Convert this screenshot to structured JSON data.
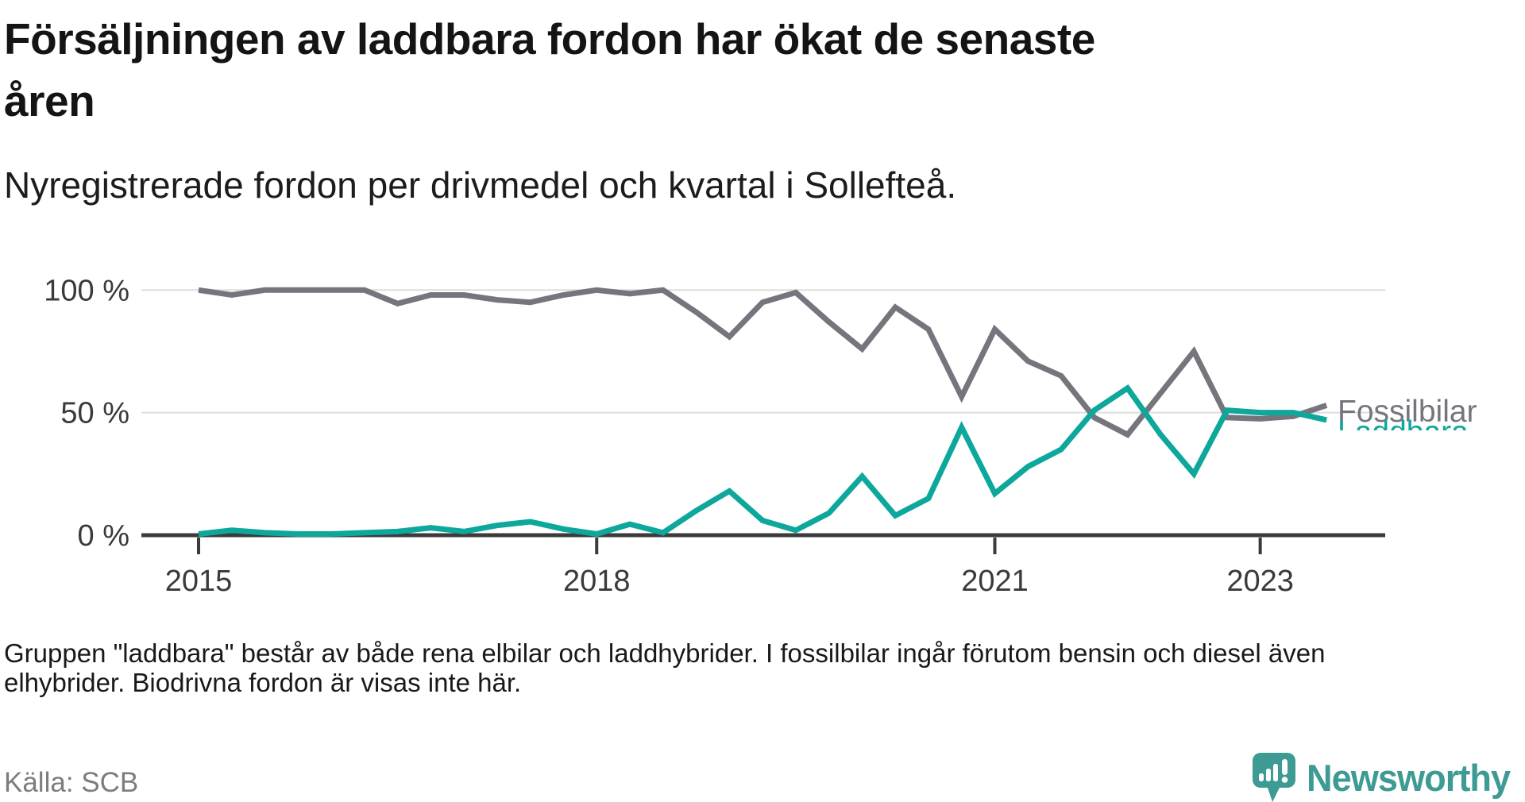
{
  "title": "Försäljningen av laddbara fordon har ökat de senaste\nåren",
  "subtitle": "Nyregistrerade fordon per drivmedel och kvartal i Sollefteå.",
  "footnote": "Gruppen \"laddbara\" består av både rena elbilar och laddhybrider. I fossilbilar ingår förutom bensin och diesel även\nelhybrider. Biodrivna fordon är visas inte här.",
  "source": "Källa: SCB",
  "branding": {
    "logo_text": "Newsworthy",
    "logo_icon": "newsworthy-speech-bubble-bars-icon",
    "logo_color": "#3d9b94"
  },
  "chart_data": {
    "type": "line",
    "x_unit": "quarter",
    "grid": "horizontal",
    "legend_position": "right-of-line-ends",
    "ylim": [
      0,
      100
    ],
    "categories": [
      "2015 Q1",
      "2015 Q2",
      "2015 Q3",
      "2015 Q4",
      "2016 Q1",
      "2016 Q2",
      "2016 Q3",
      "2016 Q4",
      "2017 Q1",
      "2017 Q2",
      "2017 Q3",
      "2017 Q4",
      "2018 Q1",
      "2018 Q2",
      "2018 Q3",
      "2018 Q4",
      "2019 Q1",
      "2019 Q2",
      "2019 Q3",
      "2019 Q4",
      "2020 Q1",
      "2020 Q2",
      "2020 Q3",
      "2020 Q4",
      "2021 Q1",
      "2021 Q2",
      "2021 Q3",
      "2021 Q4",
      "2022 Q1",
      "2022 Q2",
      "2022 Q3",
      "2022 Q4",
      "2023 Q1",
      "2023 Q2",
      "2023 Q3"
    ],
    "series": [
      {
        "name": "Fossilbilar",
        "color": "#75757d",
        "values": [
          100,
          98,
          100,
          100,
          100,
          100,
          94.5,
          98,
          98,
          96,
          95,
          98,
          100,
          98.5,
          100,
          91,
          81,
          95,
          99,
          87,
          76,
          93,
          84,
          56.5,
          84,
          71,
          65,
          48,
          41,
          58,
          75,
          48,
          47.5,
          48.5,
          53
        ]
      },
      {
        "name": "Laddbara",
        "color": "#0da79c",
        "values": [
          0.5,
          2,
          1,
          0.5,
          0.5,
          1,
          1.5,
          3,
          1.5,
          4,
          5.5,
          2.5,
          0.5,
          4.5,
          1,
          10,
          18,
          6,
          2,
          9,
          24,
          8,
          15,
          44,
          17,
          28,
          35,
          51,
          60,
          41,
          25,
          51,
          50,
          50,
          47
        ]
      }
    ],
    "y_ticks": [
      {
        "label": "100 %",
        "value": 100
      },
      {
        "label": "50 %",
        "value": 50
      },
      {
        "label": "0 %",
        "value": 0
      }
    ],
    "x_ticks": [
      {
        "label": "2015",
        "index": 0
      },
      {
        "label": "2018",
        "index": 12
      },
      {
        "label": "2021",
        "index": 24
      },
      {
        "label": "2023",
        "index": 32
      }
    ]
  }
}
